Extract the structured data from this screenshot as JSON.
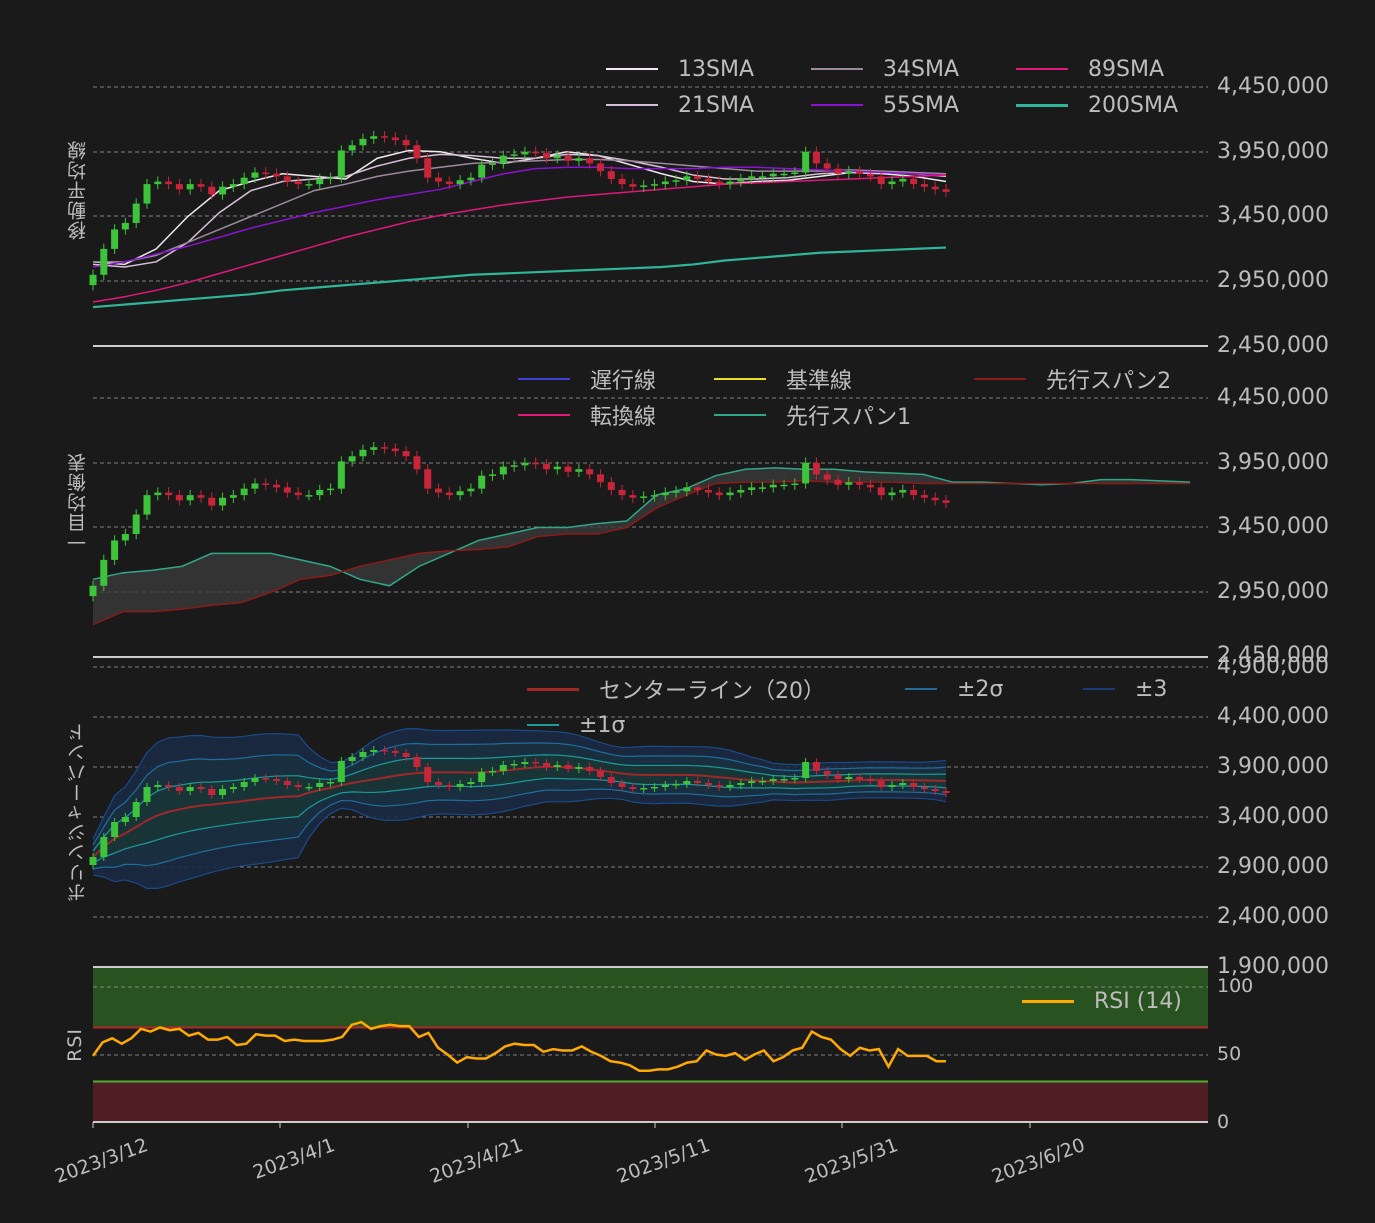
{
  "chart_data": [
    {
      "type": "line",
      "title": "",
      "ylabel": "移動平均線",
      "ylim": [
        2450000,
        4450000
      ],
      "yticks": [
        "4,450,000",
        "3,950,000",
        "3,450,000",
        "2,950,000",
        "2,450,000"
      ],
      "legend": [
        {
          "name": "13SMA",
          "color": "#f0eaf0"
        },
        {
          "name": "34SMA",
          "color": "#9c8a9c"
        },
        {
          "name": "89SMA",
          "color": "#e0187a"
        },
        {
          "name": "21SMA",
          "color": "#d8c0d8"
        },
        {
          "name": "55SMA",
          "color": "#8a12d0"
        },
        {
          "name": "200SMA",
          "color": "#2fb59a"
        }
      ],
      "series": [
        {
          "name": "13SMA",
          "values": [
            3100000,
            3080000,
            3200000,
            3450000,
            3650000,
            3720000,
            3780000,
            3760000,
            3740000,
            3900000,
            3960000,
            3950000,
            3900000,
            3860000,
            3900000,
            3950000,
            3920000,
            3850000,
            3780000,
            3720000,
            3700000,
            3720000,
            3730000,
            3760000,
            3790000,
            3780000,
            3760000,
            3720000
          ]
        },
        {
          "name": "21SMA",
          "values": [
            3080000,
            3060000,
            3100000,
            3250000,
            3480000,
            3650000,
            3720000,
            3740000,
            3760000,
            3840000,
            3900000,
            3930000,
            3920000,
            3900000,
            3900000,
            3930000,
            3920000,
            3880000,
            3830000,
            3770000,
            3740000,
            3740000,
            3750000,
            3780000,
            3790000,
            3790000,
            3780000,
            3760000
          ]
        },
        {
          "name": "34SMA",
          "values": [
            3100000,
            3100000,
            3150000,
            3250000,
            3350000,
            3450000,
            3550000,
            3650000,
            3700000,
            3760000,
            3800000,
            3830000,
            3860000,
            3870000,
            3880000,
            3890000,
            3890000,
            3880000,
            3860000,
            3840000,
            3820000,
            3800000,
            3800000,
            3800000,
            3810000,
            3800000,
            3790000,
            3780000
          ]
        },
        {
          "name": "55SMA",
          "values": [
            3060000,
            3100000,
            3160000,
            3220000,
            3290000,
            3360000,
            3420000,
            3480000,
            3530000,
            3580000,
            3620000,
            3660000,
            3720000,
            3780000,
            3820000,
            3830000,
            3830000,
            3820000,
            3820000,
            3820000,
            3830000,
            3830000,
            3820000,
            3810000,
            3800000,
            3790000,
            3780000,
            3770000
          ]
        },
        {
          "name": "89SMA",
          "values": [
            2790000,
            2830000,
            2880000,
            2940000,
            3010000,
            3080000,
            3150000,
            3220000,
            3290000,
            3350000,
            3410000,
            3460000,
            3500000,
            3540000,
            3570000,
            3600000,
            3620000,
            3640000,
            3660000,
            3680000,
            3700000,
            3710000,
            3720000,
            3730000,
            3740000,
            3750000,
            3760000,
            3770000
          ]
        },
        {
          "name": "200SMA",
          "values": [
            2750000,
            2770000,
            2790000,
            2810000,
            2830000,
            2850000,
            2880000,
            2900000,
            2920000,
            2940000,
            2960000,
            2980000,
            3000000,
            3010000,
            3020000,
            3030000,
            3040000,
            3050000,
            3060000,
            3080000,
            3110000,
            3130000,
            3150000,
            3170000,
            3180000,
            3190000,
            3200000,
            3210000
          ]
        }
      ]
    },
    {
      "type": "line",
      "title": "",
      "ylabel": "一目均衡表",
      "ylim": [
        2450000,
        4450000
      ],
      "yticks": [
        "4,450,000",
        "3,950,000",
        "3,450,000",
        "2,950,000",
        "2,450,000"
      ],
      "legend": [
        {
          "name": "遅行線",
          "color": "#4040d8"
        },
        {
          "name": "基準線",
          "color": "#e8e020"
        },
        {
          "name": "先行スパン2",
          "color": "#8b1a1a"
        },
        {
          "name": "転換線",
          "color": "#e0187a"
        },
        {
          "name": "先行スパン1",
          "color": "#2fa88a"
        }
      ]
    },
    {
      "type": "line",
      "title": "",
      "ylabel": "ボリンジャーバンド",
      "ylim": [
        1900000,
        4900000
      ],
      "yticks": [
        "4,900,000",
        "4,400,000",
        "3,900,000",
        "3,400,000",
        "2,900,000",
        "2,400,000",
        "1,900,000"
      ],
      "legend": [
        {
          "name": "センターライン（20）",
          "color": "#a02828"
        },
        {
          "name": "±2σ",
          "color": "#1f6e9a"
        },
        {
          "name": "±3",
          "color": "#1a3c78"
        },
        {
          "name": "±1σ",
          "color": "#1a9a9a"
        }
      ]
    },
    {
      "type": "line",
      "title": "",
      "ylabel": "RSI",
      "ylim": [
        0,
        100
      ],
      "yticks": [
        "100",
        "50",
        "0"
      ],
      "legend": [
        {
          "name": "RSI (14)",
          "color": "#ffaa00"
        }
      ],
      "overbought": 70,
      "oversold": 30,
      "series": [
        {
          "name": "RSI (14)",
          "values": [
            49,
            59,
            62,
            58,
            62,
            69,
            67,
            70,
            68,
            69,
            64,
            66,
            61,
            61,
            63,
            57,
            58,
            65,
            64,
            64,
            60,
            61,
            60,
            60,
            60,
            61,
            63,
            72,
            74,
            69,
            71,
            72,
            71,
            71,
            63,
            66,
            55,
            50,
            44,
            48,
            47,
            47,
            51,
            56,
            58,
            57,
            57,
            52,
            54,
            53,
            53,
            56,
            52,
            49,
            45,
            44,
            42,
            38,
            38,
            39,
            39,
            41,
            44,
            45,
            53,
            50,
            49,
            51,
            46,
            50,
            53,
            45,
            48,
            53,
            55,
            67,
            63,
            61,
            54,
            49,
            55,
            53,
            54,
            41,
            54,
            49,
            49,
            49,
            45,
            45
          ]
        }
      ]
    }
  ],
  "x_axis": {
    "ticks": [
      "2023/3/12",
      "2023/4/1",
      "2023/4/21",
      "2023/5/11",
      "2023/5/31",
      "2023/6/20"
    ]
  },
  "colors": {
    "background": "#1a1a1a",
    "candle_up": "#3ec43a",
    "candle_down": "#c8243a",
    "grid": "#9a9a9a",
    "axis_text": "#bdbdbd",
    "overbought_zone": "#285320",
    "oversold_zone": "#4e1e22",
    "overbought_line": "#b02828",
    "oversold_line": "#4cb030"
  }
}
